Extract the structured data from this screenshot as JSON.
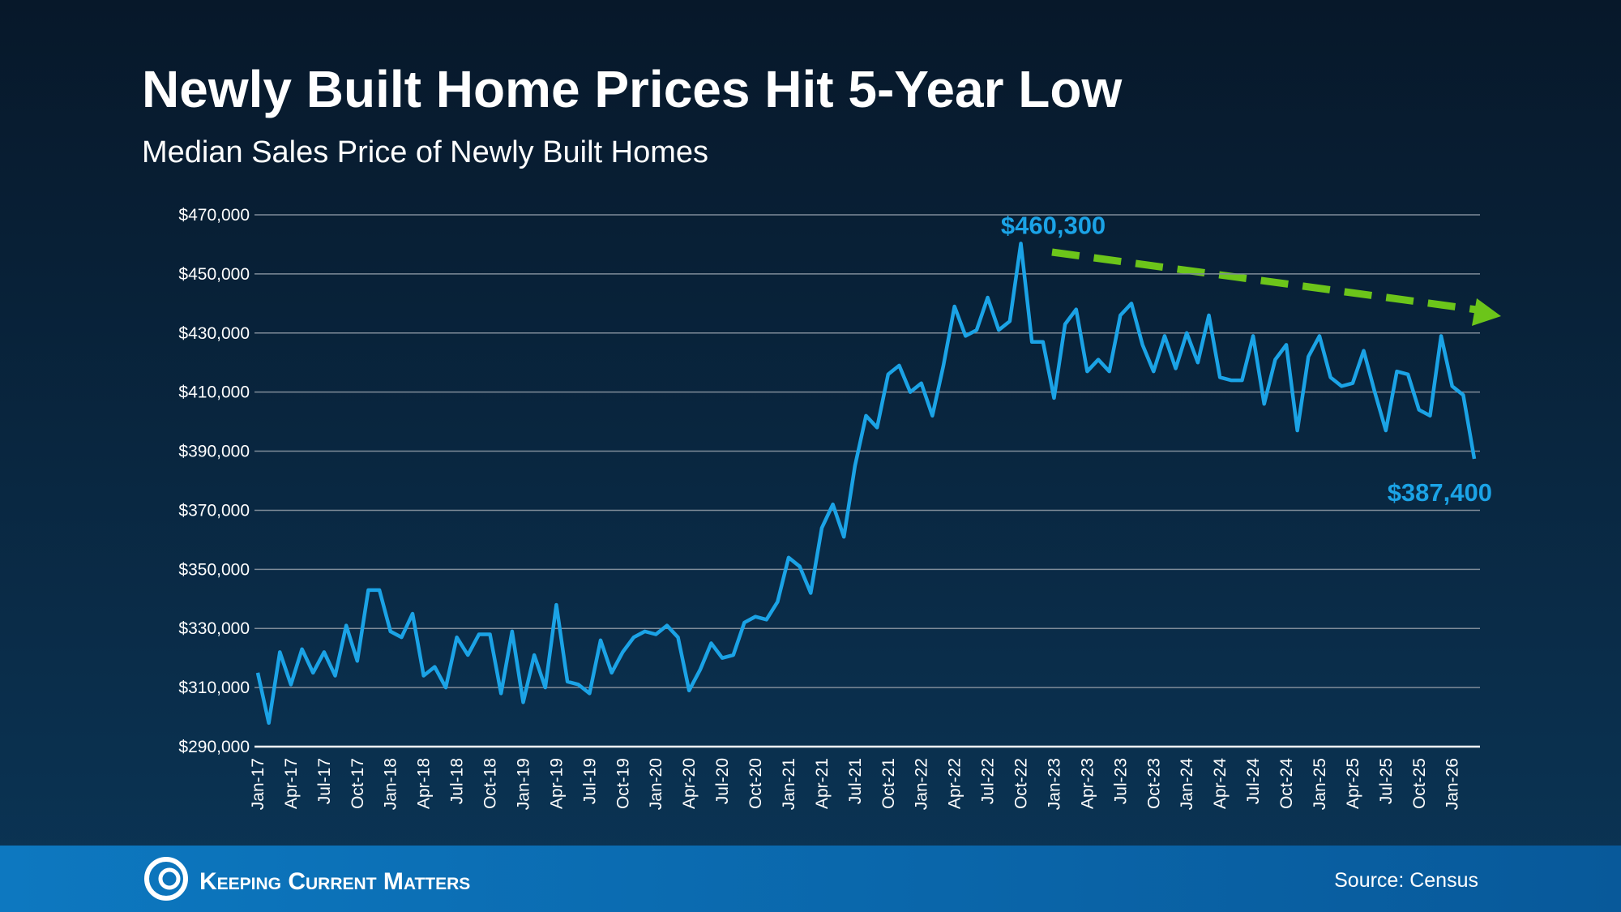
{
  "chart_data": {
    "type": "line",
    "title": "Newly Built Home Prices Hit 5-Year Low",
    "subtitle": "Median Sales Price of Newly Built Homes",
    "source": "Source: Census",
    "brand": "Keeping Current Matters",
    "categories": [
      "Jan-17",
      null,
      null,
      "Apr-17",
      null,
      null,
      "Jul-17",
      null,
      null,
      "Oct-17",
      null,
      null,
      "Jan-18",
      null,
      null,
      "Apr-18",
      null,
      null,
      "Jul-18",
      null,
      null,
      "Oct-18",
      null,
      null,
      "Jan-19",
      null,
      null,
      "Apr-19",
      null,
      null,
      "Jul-19",
      null,
      null,
      "Oct-19",
      null,
      null,
      "Jan-20",
      null,
      null,
      "Apr-20",
      null,
      null,
      "Jul-20",
      null,
      null,
      "Oct-20",
      null,
      null,
      "Jan-21",
      null,
      null,
      "Apr-21",
      null,
      null,
      "Jul-21",
      null,
      null,
      "Oct-21",
      null,
      null,
      "Jan-22",
      null,
      null,
      "Apr-22",
      null,
      null,
      "Jul-22",
      null,
      null,
      "Oct-22",
      null,
      null,
      "Jan-23",
      null,
      null,
      "Apr-23",
      null,
      null,
      "Jul-23",
      null,
      null,
      "Oct-23",
      null,
      null,
      "Jan-24",
      null,
      null,
      "Apr-24",
      null,
      null,
      "Jul-24",
      null,
      null,
      "Oct-24",
      null,
      null,
      "Jan-25",
      null,
      null,
      "Apr-25",
      null,
      null,
      "Jul-25",
      null,
      null,
      "Oct-25",
      null,
      null,
      "Jan-26",
      null,
      null
    ],
    "values": [
      315000,
      298000,
      322000,
      311000,
      323000,
      315000,
      322000,
      314000,
      331000,
      319000,
      343000,
      343000,
      329000,
      327000,
      335000,
      314000,
      317000,
      310000,
      327000,
      321000,
      328000,
      328000,
      308000,
      329000,
      305000,
      321000,
      310000,
      338000,
      312000,
      311000,
      308000,
      326000,
      315000,
      322000,
      327000,
      329000,
      328000,
      331000,
      327000,
      309000,
      316000,
      325000,
      320000,
      321000,
      332000,
      334000,
      333000,
      339000,
      354000,
      351000,
      342000,
      364000,
      372000,
      361000,
      385000,
      402000,
      398000,
      416000,
      419000,
      410000,
      413000,
      402000,
      419000,
      439000,
      429000,
      431000,
      442000,
      431000,
      434000,
      460300,
      427000,
      427000,
      408000,
      433000,
      438000,
      417000,
      421000,
      417000,
      436000,
      440000,
      426000,
      417000,
      429000,
      418000,
      430000,
      420000,
      436000,
      415000,
      414000,
      414000,
      429000,
      406000,
      421000,
      426000,
      397000,
      422000,
      429000,
      415000,
      412000,
      413000,
      424000,
      410000,
      397000,
      417000,
      416000,
      404000,
      402000,
      429000,
      412000,
      409000,
      387400
    ],
    "value_labels": [
      null,
      null,
      null,
      null,
      null,
      null,
      null,
      null,
      null,
      null,
      null,
      null,
      null,
      null,
      null,
      null,
      null,
      null,
      null,
      null,
      null,
      null,
      null,
      null,
      null,
      null,
      null,
      null,
      null,
      null,
      null,
      null,
      null,
      null,
      null,
      null,
      null,
      null,
      null,
      null,
      null,
      null,
      null,
      null,
      null,
      null,
      null,
      null,
      null,
      null,
      null,
      null,
      null,
      null,
      null,
      null,
      null,
      null,
      null,
      null,
      null,
      null,
      null,
      null,
      null,
      null,
      null,
      null,
      null,
      "$460,300",
      null,
      null,
      null,
      null,
      null,
      null,
      null,
      null,
      null,
      null,
      null,
      null,
      null,
      null,
      null,
      null,
      null,
      null,
      null,
      null,
      null,
      null,
      null,
      null,
      null,
      null,
      null,
      null,
      null,
      null,
      null,
      null,
      null,
      null,
      null,
      null,
      null,
      null,
      null,
      null,
      "$387,400"
    ],
    "color": "#1ba3e6",
    "ylim": [
      290000,
      470000
    ],
    "yticks": [
      {
        "value": 290000,
        "label": "$290,000"
      },
      {
        "value": 310000,
        "label": "$310,000"
      },
      {
        "value": 330000,
        "label": "$330,000"
      },
      {
        "value": 350000,
        "label": "$350,000"
      },
      {
        "value": 370000,
        "label": "$370,000"
      },
      {
        "value": 390000,
        "label": "$390,000"
      },
      {
        "value": 410000,
        "label": "$410,000"
      },
      {
        "value": 430000,
        "label": "$430,000"
      },
      {
        "value": 450000,
        "label": "$450,000"
      },
      {
        "value": 470000,
        "label": "$470,000"
      }
    ],
    "grid": true
  }
}
